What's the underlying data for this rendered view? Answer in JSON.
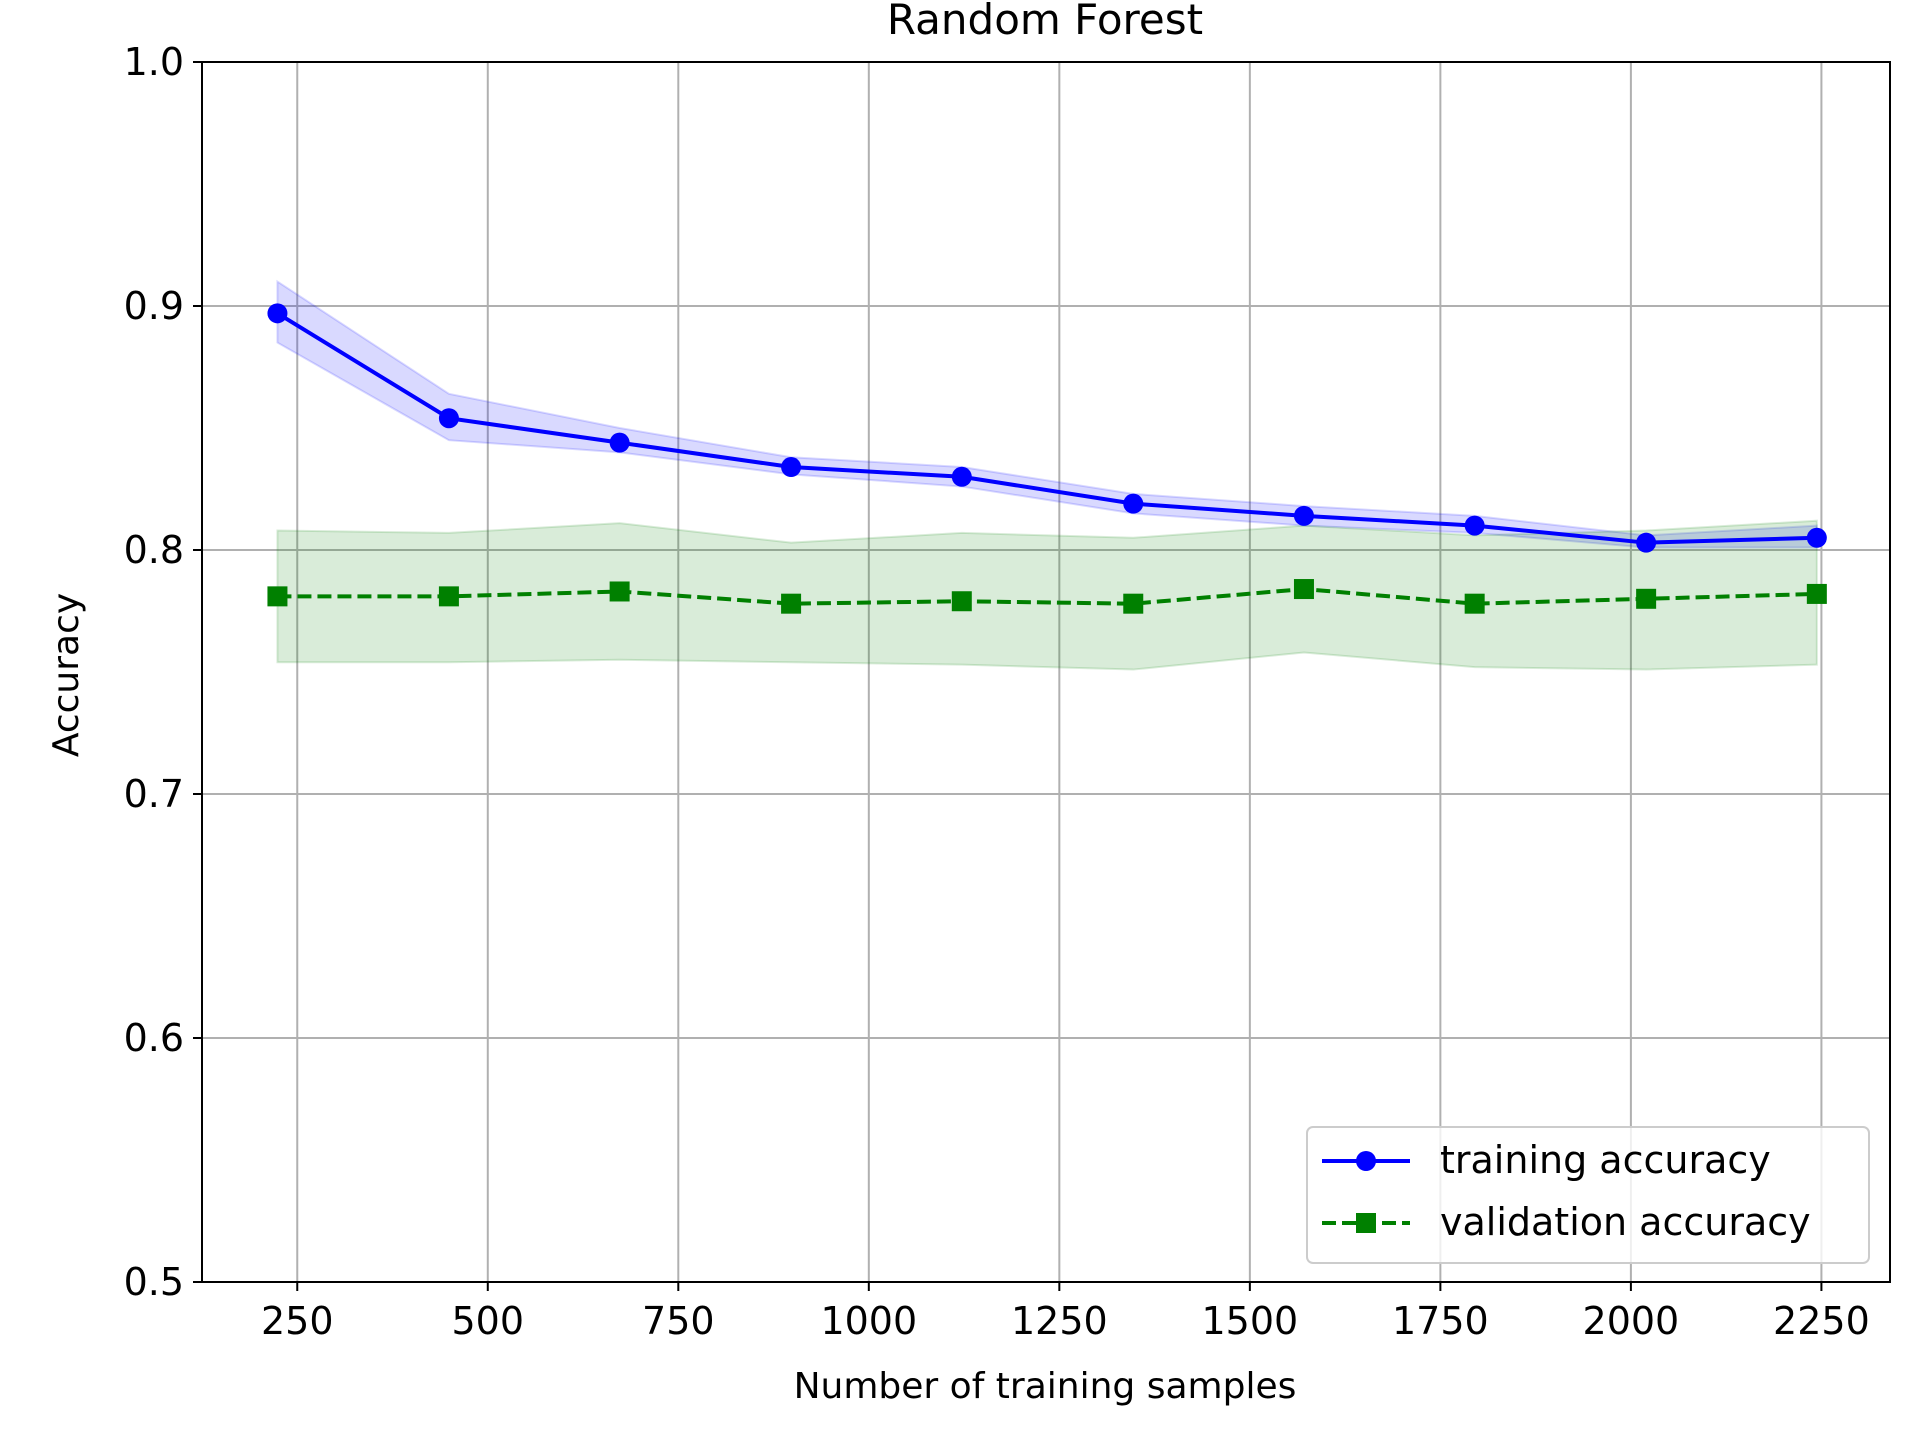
{
  "chart_data": {
    "type": "line",
    "title": "Random Forest",
    "xlabel": "Number of training samples",
    "ylabel": "Accuracy",
    "xlim": [
      125,
      2340
    ],
    "ylim": [
      0.5,
      1.0
    ],
    "xticks": [
      "250",
      "500",
      "750",
      "1000",
      "1250",
      "1500",
      "1750",
      "2000",
      "2250"
    ],
    "yticks": [
      "0.5",
      "0.6",
      "0.7",
      "0.8",
      "0.9",
      "1.0"
    ],
    "grid": true,
    "legend_position": "lower-right",
    "x": [
      224,
      449,
      673,
      898,
      1122,
      1347,
      1571,
      1795,
      2020,
      2244
    ],
    "series": [
      {
        "name": "training accuracy",
        "color": "#0000ff",
        "marker": "circle",
        "linestyle": "solid",
        "values": [
          0.897,
          0.854,
          0.844,
          0.834,
          0.83,
          0.819,
          0.814,
          0.81,
          0.803,
          0.805
        ],
        "lower": [
          0.885,
          0.845,
          0.84,
          0.831,
          0.826,
          0.815,
          0.81,
          0.807,
          0.801,
          0.801
        ],
        "upper": [
          0.91,
          0.864,
          0.85,
          0.838,
          0.834,
          0.823,
          0.818,
          0.814,
          0.806,
          0.81
        ]
      },
      {
        "name": "validation accuracy",
        "color": "#008000",
        "marker": "square",
        "linestyle": "dashed",
        "values": [
          0.781,
          0.781,
          0.783,
          0.778,
          0.779,
          0.778,
          0.784,
          0.778,
          0.78,
          0.782
        ],
        "lower": [
          0.754,
          0.754,
          0.755,
          0.754,
          0.753,
          0.751,
          0.758,
          0.752,
          0.751,
          0.753
        ],
        "upper": [
          0.808,
          0.807,
          0.811,
          0.803,
          0.807,
          0.805,
          0.81,
          0.806,
          0.808,
          0.812
        ]
      }
    ]
  }
}
